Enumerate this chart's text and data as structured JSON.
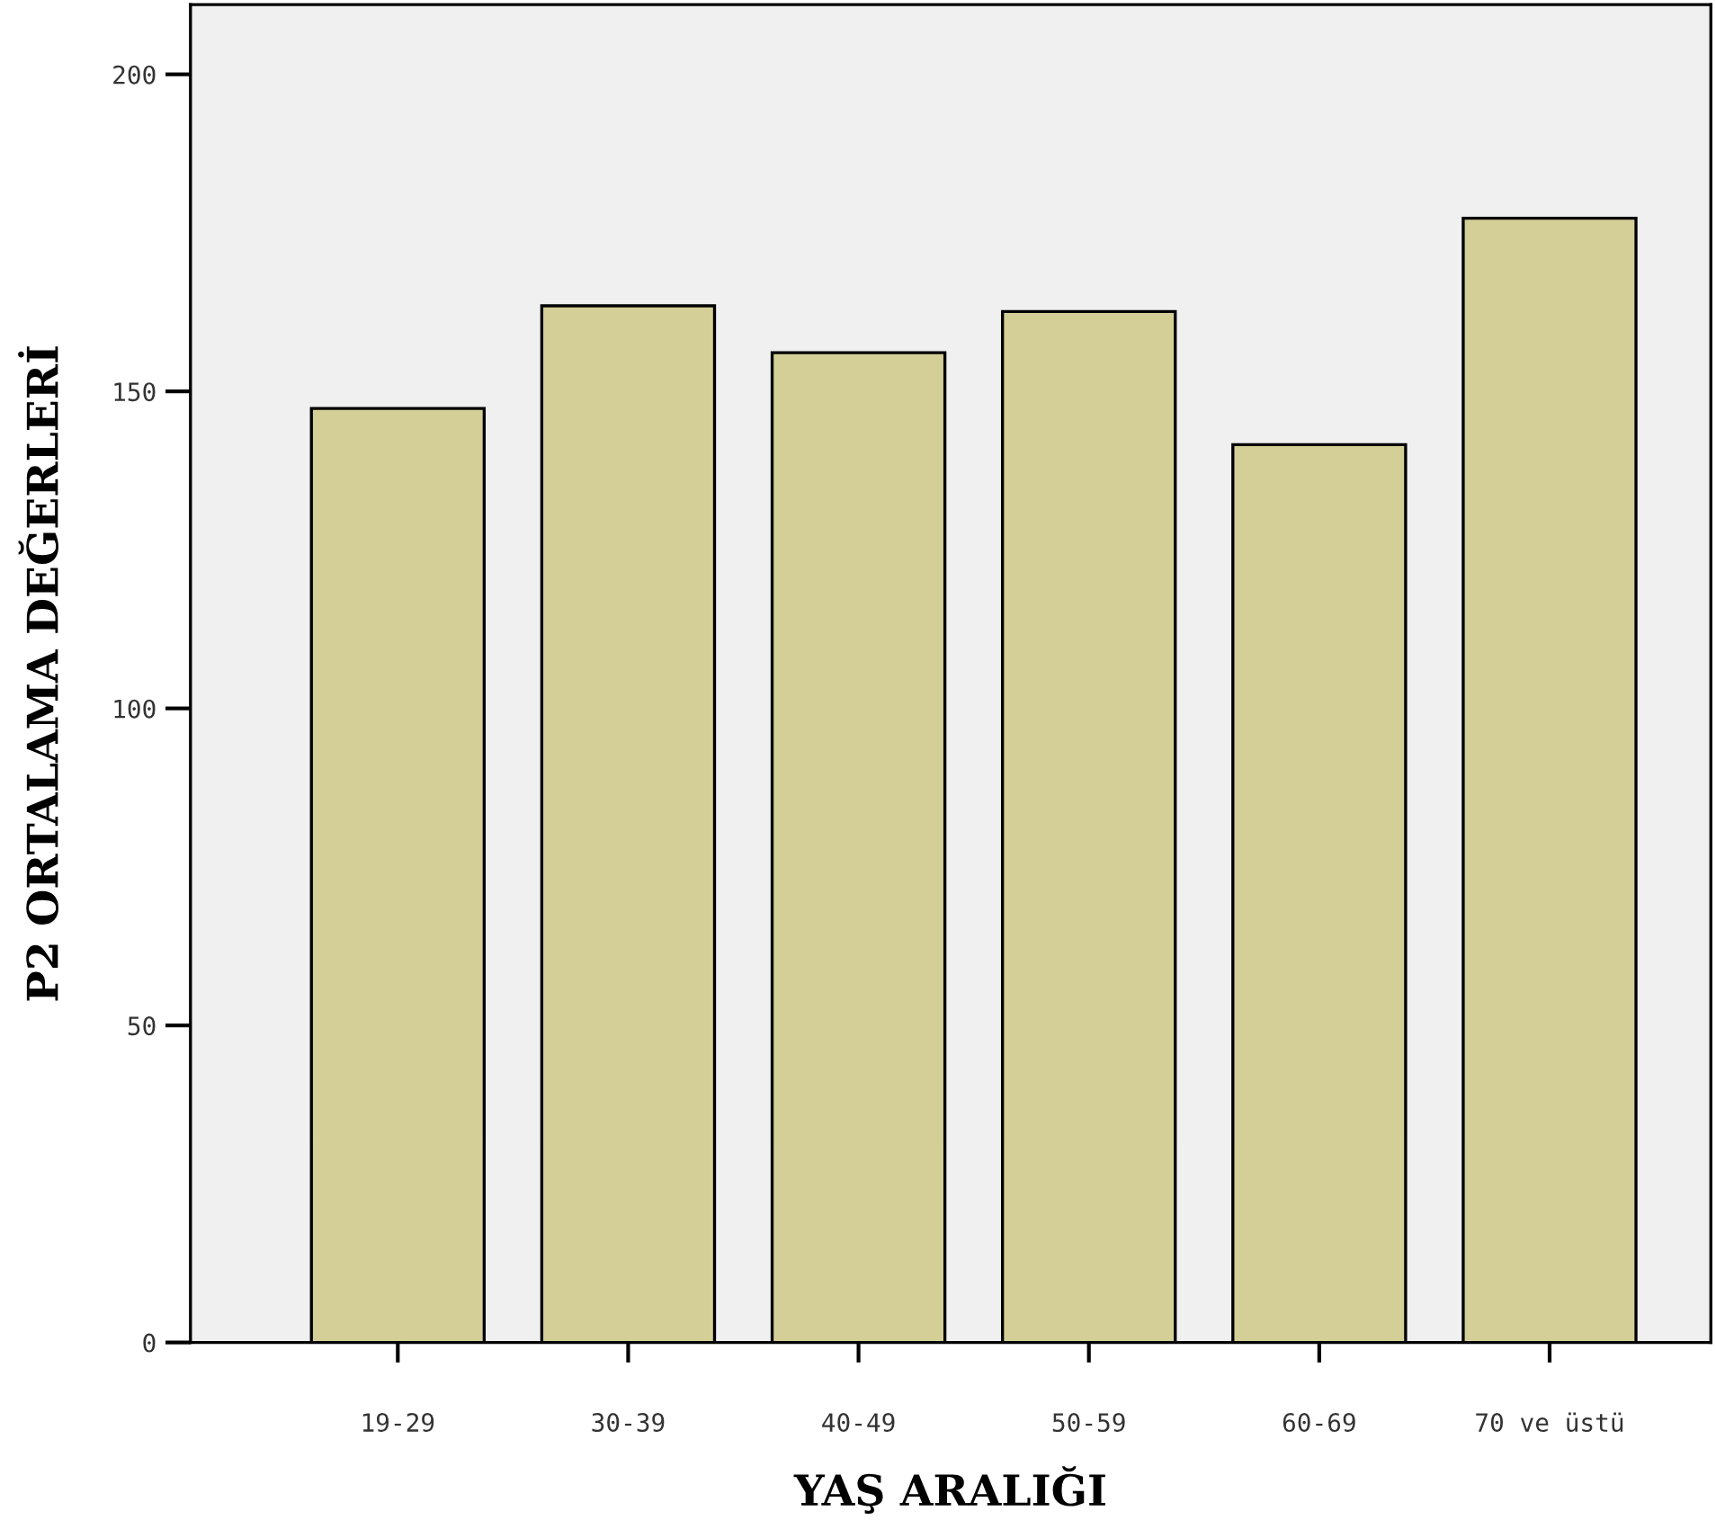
{
  "chart_data": {
    "type": "bar",
    "xlabel": "YAŞ ARALIĞI",
    "ylabel": "P2 ORTALAMA DEĞERLERİ",
    "categories": [
      "19-29",
      "30-39",
      "40-49",
      "50-59",
      "60-69",
      "70 ve üstü"
    ],
    "values": [
      147.3,
      163.5,
      156.1,
      162.6,
      141.6,
      177.3
    ],
    "color": "#d4cf97",
    "ylim": [
      0,
      211
    ],
    "yticks": [
      0,
      50,
      100,
      150,
      200
    ],
    "grid": false,
    "legend": false
  }
}
